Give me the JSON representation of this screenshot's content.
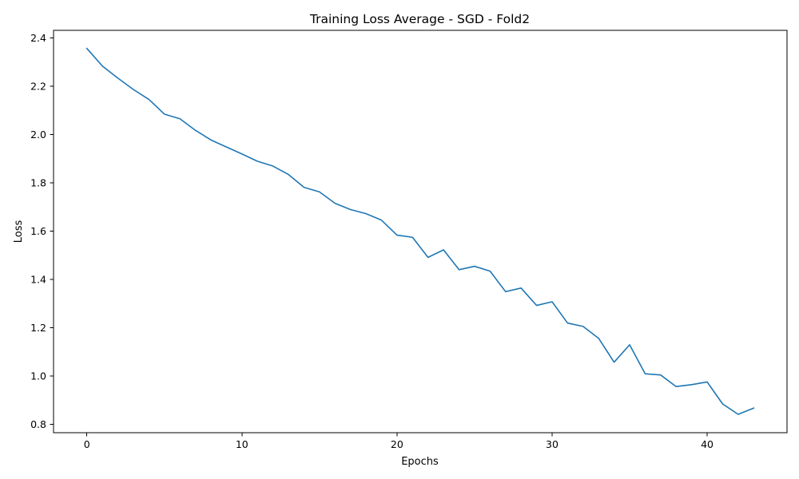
{
  "colors": {
    "series": "#1f77b4",
    "axis": "#000000",
    "background": "#ffffff"
  },
  "chart_data": {
    "type": "line",
    "title": "Training Loss Average - SGD - Fold2",
    "xlabel": "Epochs",
    "ylabel": "Loss",
    "xlim": [
      -2.15,
      45.15
    ],
    "ylim": [
      0.766,
      2.432
    ],
    "xticks": [
      0,
      10,
      20,
      30,
      40
    ],
    "yticks": [
      0.8,
      1.0,
      1.2,
      1.4,
      1.6,
      1.8,
      2.0,
      2.2,
      2.4
    ],
    "xtick_labels": [
      "0",
      "10",
      "20",
      "30",
      "40"
    ],
    "ytick_labels": [
      "0.8",
      "1.0",
      "1.2",
      "1.4",
      "1.6",
      "1.8",
      "2.0",
      "2.2",
      "2.4"
    ],
    "grid": false,
    "legend": "none",
    "series": [
      {
        "color": "#1f77b4",
        "x": [
          0,
          1,
          2,
          3,
          4,
          5,
          6,
          7,
          8,
          9,
          10,
          11,
          12,
          13,
          14,
          15,
          16,
          17,
          18,
          19,
          20,
          21,
          22,
          23,
          24,
          25,
          26,
          27,
          28,
          29,
          30,
          31,
          32,
          33,
          34,
          35,
          36,
          37,
          38,
          39,
          40,
          41,
          42,
          43
        ],
        "y": [
          2.357,
          2.284,
          2.234,
          2.187,
          2.146,
          2.085,
          2.066,
          2.018,
          1.978,
          1.949,
          1.92,
          1.89,
          1.87,
          1.835,
          1.782,
          1.763,
          1.716,
          1.69,
          1.673,
          1.646,
          1.584,
          1.575,
          1.492,
          1.523,
          1.441,
          1.455,
          1.435,
          1.35,
          1.365,
          1.293,
          1.308,
          1.22,
          1.206,
          1.157,
          1.058,
          1.13,
          1.01,
          1.005,
          0.957,
          0.965,
          0.976,
          0.885,
          0.842,
          0.868
        ]
      }
    ]
  }
}
